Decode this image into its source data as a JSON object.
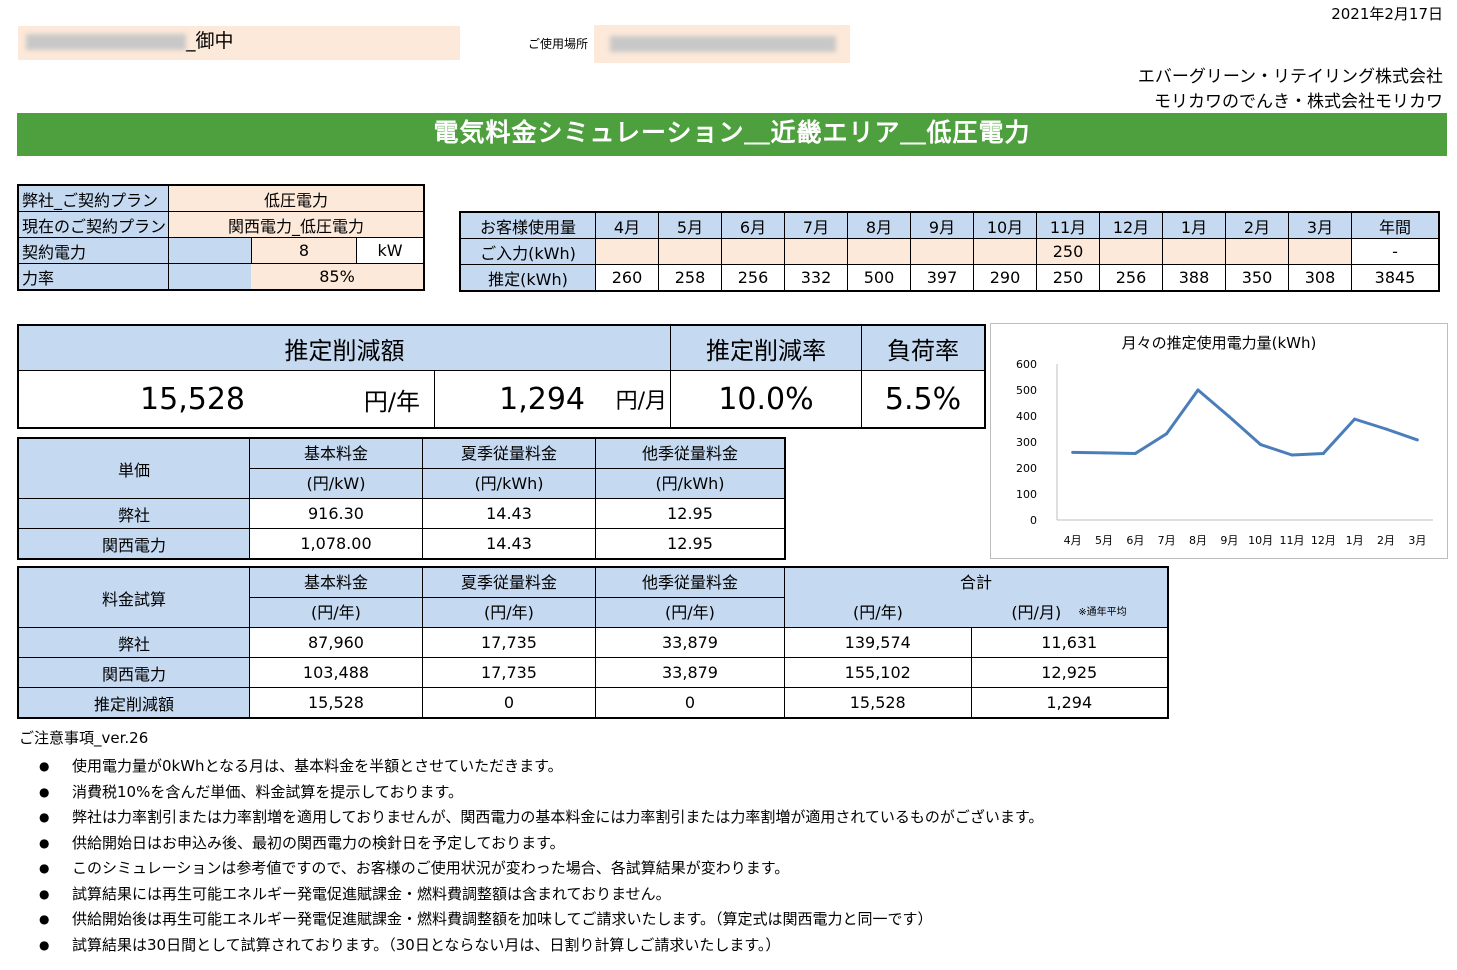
{
  "header": {
    "date": "2021年2月17日",
    "customer_suffix": "_御中",
    "place_label": "ご使用場所",
    "company_1": "エバーグリーン・リテイリング株式会社",
    "company_2": "モリカワのでんき・株式会社モリカワ"
  },
  "title": "電気料金シミュレーション＿近畿エリア＿低圧電力",
  "contract": {
    "our_plan_label": "弊社_ご契約プラン",
    "our_plan": "低圧電力",
    "current_plan_label": "現在のご契約プラン",
    "current_plan": "関西電力_低圧電力",
    "power_label": "契約電力",
    "power_value": "8",
    "power_unit": "kW",
    "pf_label": "力率",
    "pf_value": "85%"
  },
  "usage": {
    "label": "お客様使用量",
    "input_label": "ご入力(kWh)",
    "estimate_label": "推定(kWh)",
    "months": [
      "4月",
      "5月",
      "6月",
      "7月",
      "8月",
      "9月",
      "10月",
      "11月",
      "12月",
      "1月",
      "2月",
      "3月",
      "年間"
    ],
    "input": [
      "",
      "",
      "",
      "",
      "",
      "",
      "",
      "250",
      "",
      "",
      "",
      "",
      "-"
    ],
    "estimate": [
      "260",
      "258",
      "256",
      "332",
      "500",
      "397",
      "290",
      "250",
      "256",
      "388",
      "350",
      "308",
      "3845"
    ]
  },
  "summary": {
    "reduction_label": "推定削減額",
    "rate_label": "推定削減率",
    "load_label": "負荷率",
    "yearly": "15,528",
    "yearly_unit": "円/年",
    "monthly": "1,294",
    "monthly_unit": "円/月",
    "rate": "10.0%",
    "load": "5.5%"
  },
  "unit_price": {
    "label": "単価",
    "headers": [
      "基本料金",
      "夏季従量料金",
      "他季従量料金"
    ],
    "units": [
      "(円/kW)",
      "(円/kWh)",
      "(円/kWh)"
    ],
    "rows": [
      {
        "name": "弊社",
        "values": [
          "916.30",
          "14.43",
          "12.95"
        ]
      },
      {
        "name": "関西電力",
        "values": [
          "1,078.00",
          "14.43",
          "12.95"
        ]
      }
    ]
  },
  "calc": {
    "label": "料金試算",
    "headers": [
      "基本料金",
      "夏季従量料金",
      "他季従量料金",
      "合計"
    ],
    "units": [
      "(円/年)",
      "(円/年)",
      "(円/年)",
      "(円/年)",
      "(円/月)"
    ],
    "note": "※通年平均",
    "rows": [
      {
        "name": "弊社",
        "values": [
          "87,960",
          "17,735",
          "33,879",
          "139,574",
          "11,631"
        ]
      },
      {
        "name": "関西電力",
        "values": [
          "103,488",
          "17,735",
          "33,879",
          "155,102",
          "12,925"
        ]
      },
      {
        "name": "推定削減額",
        "values": [
          "15,528",
          "0",
          "0",
          "15,528",
          "1,294"
        ]
      }
    ]
  },
  "notes": {
    "title": "ご注意事項_ver.26",
    "bullet": "●",
    "items": [
      "使用電力量が0kWhとなる月は、基本料金を半額とさせていただきます。",
      "消費税10%を含んだ単価、料金試算を提示しております。",
      "弊社は力率割引または力率割増を適用しておりませんが、関西電力の基本料金には力率割引または力率割増が適用されているものがございます。",
      "供給開始日はお申込み後、最初の関西電力の検針日を予定しております。",
      "このシミュレーションは参考値ですので、お客様のご使用状況が変わった場合、各試算結果が変わります。",
      "試算結果には再生可能エネルギー発電促進賦課金・燃料費調整額は含まれておりません。",
      "供給開始後は再生可能エネルギー発電促進賦課金・燃料費調整額を加味してご請求いたします。（算定式は関西電力と同一です）",
      "試算結果は30日間として試算されております。（30日とならない月は、日割り計算しご請求いたします。）"
    ]
  },
  "chart_data": {
    "type": "line",
    "title": "月々の推定使用電力量(kWh)",
    "categories": [
      "4月",
      "5月",
      "6月",
      "7月",
      "8月",
      "9月",
      "10月",
      "11月",
      "12月",
      "1月",
      "2月",
      "3月"
    ],
    "values": [
      260,
      258,
      256,
      332,
      500,
      397,
      290,
      250,
      256,
      388,
      350,
      308
    ],
    "ylim": [
      0,
      600
    ],
    "yticks": [
      "0",
      "100",
      "200",
      "300",
      "400",
      "500",
      "600"
    ],
    "color": "#4a7ebb",
    "grid": false,
    "legend": "none"
  }
}
